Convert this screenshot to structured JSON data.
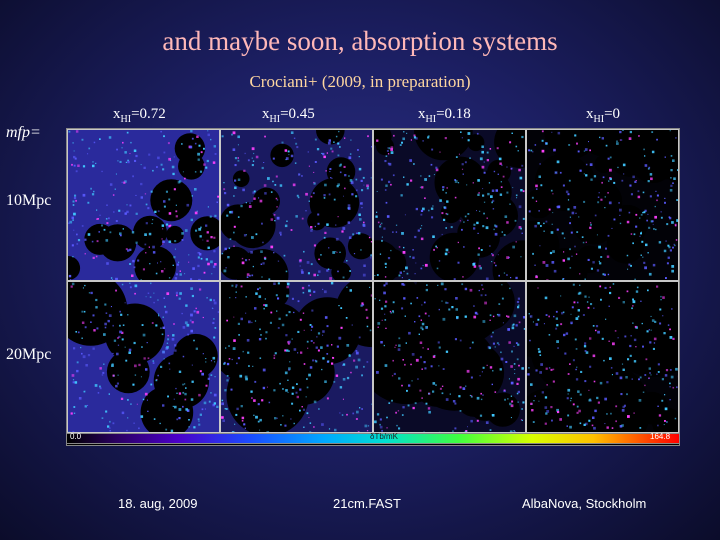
{
  "slide": {
    "title": "and maybe soon, absorption systems",
    "subtitle": "Crociani+ (2009, in preparation)"
  },
  "columns": [
    {
      "prefix": "x",
      "sub": "HI",
      "value": "=0.72"
    },
    {
      "prefix": "x",
      "sub": "HI",
      "value": "=0.45"
    },
    {
      "prefix": "x",
      "sub": "HI",
      "value": "=0.18"
    },
    {
      "prefix": "x",
      "sub": "HI",
      "value": "=0"
    }
  ],
  "rows": {
    "mfp_label": "mfp=",
    "row1": "10Mpc",
    "row2": "20Mpc"
  },
  "colorbar": {
    "min_label": "0.0",
    "max_label": "164.8",
    "unit_label": "δTb/mK"
  },
  "footer": {
    "date": "18. aug, 2009",
    "event": "21cm.FAST",
    "venue": "AlbaNova, Stockholm"
  },
  "colors": {
    "title": "#ffb8b8",
    "subtitle": "#ffd7a0",
    "map_blue": "#3a3ad8",
    "map_cyan": "#40c8ff"
  }
}
